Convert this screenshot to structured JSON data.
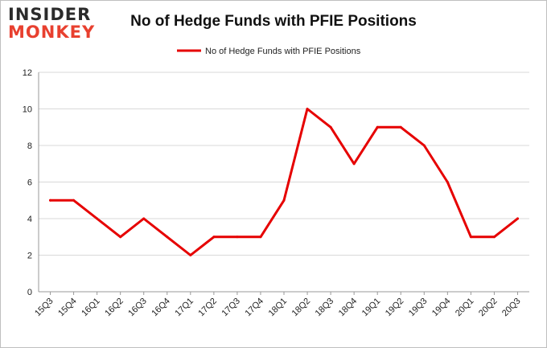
{
  "logo": {
    "line1": "INSIDER",
    "line2": "MONKEY"
  },
  "chart_data": {
    "type": "line",
    "title": "No of Hedge Funds with PFIE Positions",
    "xlabel": "",
    "ylabel": "",
    "categories": [
      "15Q3",
      "15Q4",
      "16Q1",
      "16Q2",
      "16Q3",
      "16Q4",
      "17Q1",
      "17Q2",
      "17Q3",
      "17Q4",
      "18Q1",
      "18Q2",
      "18Q3",
      "18Q4",
      "19Q1",
      "19Q2",
      "19Q3",
      "19Q4",
      "20Q1",
      "20Q2",
      "20Q3"
    ],
    "series": [
      {
        "name": "No of Hedge Funds with PFIE Positions",
        "color": "#e60000",
        "values": [
          5,
          5,
          4,
          3,
          4,
          3,
          2,
          3,
          3,
          3,
          5,
          10,
          9,
          7,
          9,
          9,
          8,
          6,
          3,
          3,
          4
        ]
      }
    ],
    "ylim": [
      0,
      12
    ],
    "yticks": [
      0,
      2,
      4,
      6,
      8,
      10,
      12
    ],
    "grid": true,
    "legend": "top-center"
  }
}
